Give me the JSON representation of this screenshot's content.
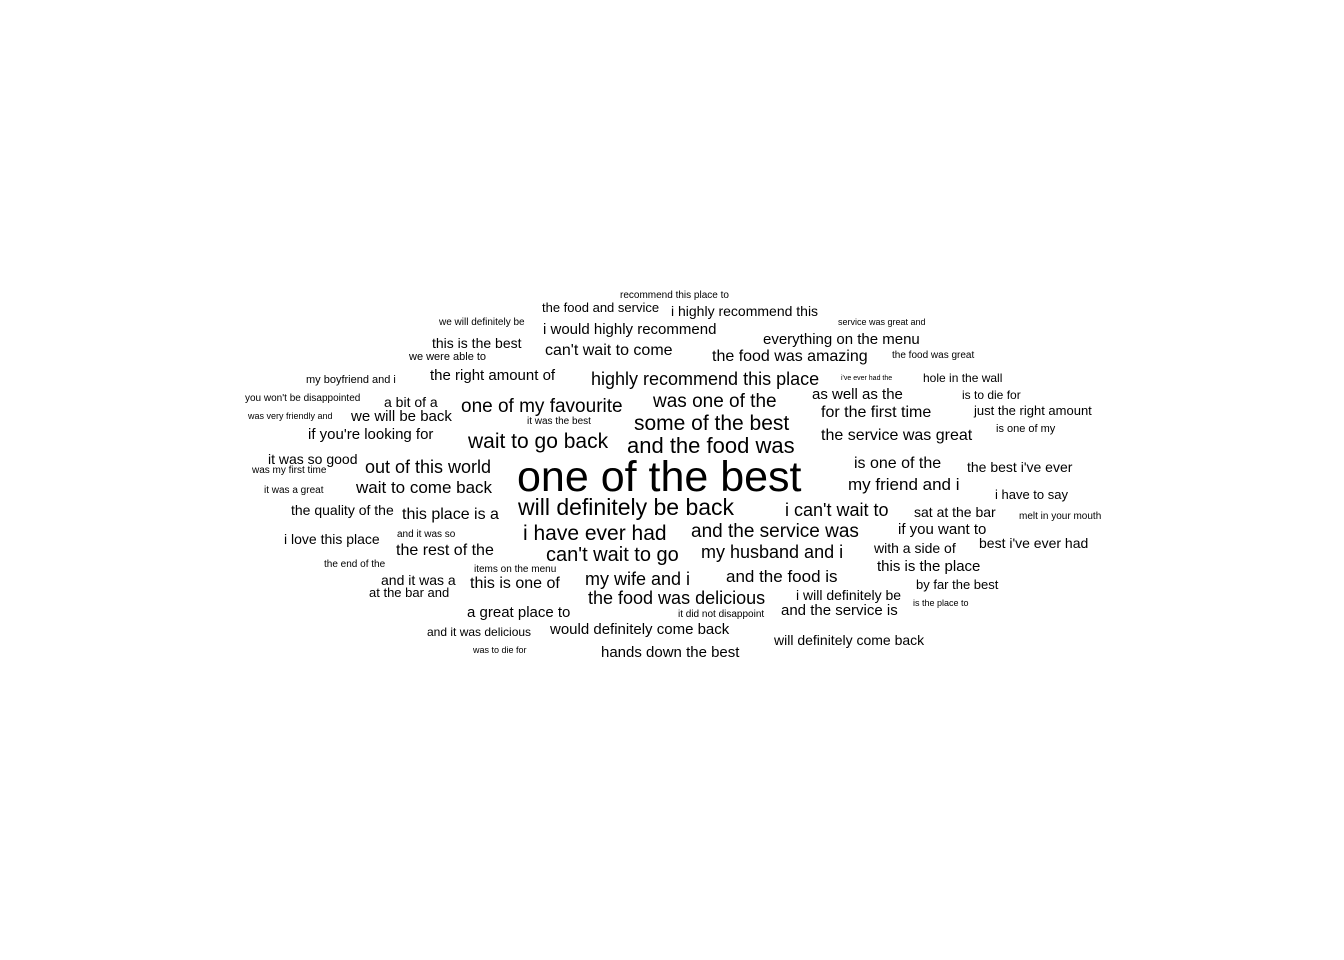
{
  "text_color": "#000000",
  "background_color": "#ffffff",
  "phrases": [
    "recommend this place to",
    "the food and service",
    "i highly recommend this",
    "we will definitely be",
    "i would highly recommend",
    "service was great and",
    "this is the best",
    "everything on the menu",
    "can't wait to come",
    "we were able to",
    "the food was amazing",
    "the food was great",
    "my boyfriend and i",
    "the right amount of",
    "highly recommend this place",
    "i've ever had the",
    "hole in the wall",
    "you won't be disappointed",
    "a bit of a",
    "as well as the",
    "is to die for",
    "was one of the",
    "one of my favourite",
    "was very friendly and",
    "we will be back",
    "for the first time",
    "just the right amount",
    "it was the best",
    "some of the best",
    "is one of my",
    "if you're looking for",
    "the service was great",
    "wait to go back",
    "and the food was",
    "it was so good",
    "is one of the",
    "was my first time",
    "out of this world",
    "the best i've ever",
    "one of the best",
    "my friend and i",
    "wait to come back",
    "it was a great",
    "i have to say",
    "will definitely be back",
    "the quality of the",
    "i can't wait to",
    "sat at the bar",
    "this place is a",
    "melt in your mouth",
    "i have ever had",
    "if you want to",
    "and the service was",
    "and it was so",
    "i love this place",
    "best i've ever had",
    "with a side of",
    "the rest of the",
    "my husband and i",
    "can't wait to go",
    "the end of the",
    "this is the place",
    "items on the menu",
    "and the food is",
    "and it was a",
    "my wife and i",
    "this is one of",
    "by far the best",
    "at the bar and",
    "i will definitely be",
    "the food was delicious",
    "is the place to",
    "and the service is",
    "a great place to",
    "it did not disappoint",
    "and it was delicious",
    "would definitely come back",
    "will definitely come back",
    "was to die for",
    "hands down the best"
  ]
}
